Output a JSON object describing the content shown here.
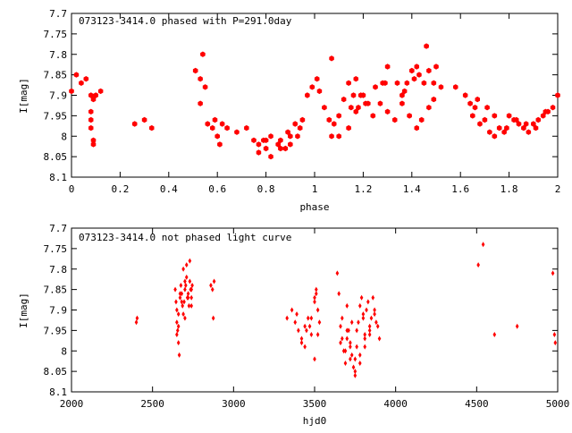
{
  "colors": {
    "points": "#ff0000",
    "axis": "#000000",
    "background": "#ffffff"
  },
  "chart_data": [
    {
      "type": "scatter",
      "title": "073123-3414.0 phased with P=291.0day",
      "xlabel": "phase",
      "ylabel": "I[mag]",
      "xlim": [
        0,
        2
      ],
      "ylim": [
        8.1,
        7.7
      ],
      "y_inverted": true,
      "grid": false,
      "legend": "none",
      "xticks": [
        "0",
        "0.2",
        "0.4",
        "0.6",
        "0.8",
        "1",
        "1.2",
        "1.4",
        "1.6",
        "1.8",
        "2"
      ],
      "yticks": [
        "7.7",
        "7.75",
        "7.8",
        "7.85",
        "7.9",
        "7.95",
        "8",
        "8.05",
        "8.1"
      ],
      "x": [
        0.0,
        0.02,
        0.04,
        0.06,
        0.08,
        0.08,
        0.08,
        0.08,
        0.09,
        0.09,
        0.09,
        0.1,
        0.12,
        0.26,
        0.3,
        0.33,
        0.51,
        0.53,
        0.54,
        0.55,
        0.53,
        0.56,
        0.58,
        0.6,
        0.59,
        0.61,
        0.62,
        0.64,
        0.68,
        0.72,
        0.75,
        0.77,
        0.8,
        0.82,
        0.85,
        0.88,
        0.9,
        0.93,
        0.77,
        0.79,
        0.82,
        0.86,
        0.89,
        0.92,
        0.95,
        0.8,
        0.86,
        0.9,
        0.94,
        0.97,
        0.99,
        1.01,
        1.02,
        1.04,
        1.06,
        1.08,
        1.1,
        1.12,
        1.14,
        1.16,
        1.18,
        1.2,
        1.22,
        1.25,
        1.28,
        1.3,
        1.07,
        1.1,
        1.14,
        1.17,
        1.19,
        1.21,
        1.24,
        1.27,
        1.3,
        1.33,
        1.36,
        1.38,
        1.4,
        1.43,
        1.45,
        1.47,
        1.49,
        1.5,
        1.52,
        1.36,
        1.39,
        1.42,
        1.44,
        1.47,
        1.49,
        1.34,
        1.37,
        1.41,
        1.46,
        1.58,
        1.62,
        1.64,
        1.65,
        1.66,
        1.68,
        1.7,
        1.72,
        1.74,
        1.76,
        1.78,
        1.8,
        1.82,
        1.84,
        1.86,
        1.88,
        1.9,
        1.92,
        1.94,
        1.96,
        1.98,
        2.0,
        1.67,
        1.71,
        1.74,
        1.79,
        1.83,
        1.87,
        1.91,
        1.95,
        1.07,
        1.15,
        1.17,
        1.29,
        1.42
      ],
      "y": [
        7.89,
        7.85,
        7.87,
        7.86,
        7.9,
        7.94,
        7.96,
        7.98,
        8.01,
        8.02,
        7.91,
        7.9,
        7.89,
        7.97,
        7.96,
        7.98,
        7.84,
        7.86,
        7.8,
        7.88,
        7.92,
        7.97,
        7.98,
        8.0,
        7.96,
        8.02,
        7.97,
        7.98,
        7.99,
        7.98,
        8.01,
        8.02,
        8.01,
        8.0,
        8.02,
        8.03,
        8.0,
        8.0,
        8.04,
        8.01,
        8.05,
        8.03,
        7.99,
        7.97,
        7.96,
        8.03,
        8.01,
        8.02,
        7.98,
        7.9,
        7.88,
        7.86,
        7.89,
        7.93,
        7.96,
        7.97,
        7.95,
        7.91,
        7.87,
        7.9,
        7.93,
        7.9,
        7.92,
        7.88,
        7.87,
        7.83,
        8.0,
        8.0,
        7.98,
        7.86,
        7.9,
        7.92,
        7.95,
        7.92,
        7.94,
        7.96,
        7.92,
        7.87,
        7.84,
        7.85,
        7.87,
        7.84,
        7.87,
        7.83,
        7.88,
        7.9,
        7.95,
        7.98,
        7.96,
        7.93,
        7.91,
        7.87,
        7.89,
        7.86,
        7.78,
        7.88,
        7.9,
        7.92,
        7.95,
        7.93,
        7.97,
        7.96,
        7.99,
        8.0,
        7.98,
        7.99,
        7.95,
        7.96,
        7.97,
        7.98,
        7.99,
        7.97,
        7.96,
        7.95,
        7.94,
        7.93,
        7.9,
        7.91,
        7.93,
        7.95,
        7.98,
        7.96,
        7.97,
        7.98,
        7.94,
        7.81,
        7.93,
        7.94,
        7.87,
        7.83
      ]
    },
    {
      "type": "scatter",
      "title": "073123-3414.0 not phased light curve",
      "xlabel": "hjd0",
      "ylabel": "I[mag]",
      "xlim": [
        2000,
        5000
      ],
      "ylim": [
        8.1,
        7.7
      ],
      "y_inverted": true,
      "grid": false,
      "legend": "none",
      "xticks": [
        "2000",
        "2500",
        "3000",
        "3500",
        "4000",
        "4500",
        "5000"
      ],
      "yticks": [
        "7.7",
        "7.75",
        "7.8",
        "7.85",
        "7.9",
        "7.95",
        "8",
        "8.05",
        "8.1"
      ],
      "x": [
        2400,
        2405,
        2640,
        2645,
        2650,
        2655,
        2660,
        2665,
        2670,
        2675,
        2680,
        2685,
        2690,
        2695,
        2700,
        2705,
        2710,
        2715,
        2720,
        2725,
        2730,
        2735,
        2740,
        2745,
        2650,
        2660,
        2670,
        2690,
        2710,
        2730,
        2660,
        2680,
        2700,
        2720,
        2740,
        2650,
        2700,
        2740,
        2860,
        2870,
        2880,
        2875,
        3330,
        3360,
        3380,
        3400,
        3420,
        3440,
        3460,
        3480,
        3500,
        3510,
        3520,
        3530,
        3390,
        3420,
        3450,
        3480,
        3500,
        3510,
        3440,
        3470,
        3500,
        3520,
        3640,
        3650,
        3660,
        3670,
        3680,
        3690,
        3700,
        3710,
        3720,
        3730,
        3740,
        3750,
        3760,
        3770,
        3780,
        3790,
        3800,
        3810,
        3820,
        3830,
        3840,
        3850,
        3860,
        3870,
        3880,
        3890,
        3900,
        3670,
        3700,
        3720,
        3750,
        3780,
        3810,
        3840,
        3870,
        3660,
        3690,
        3720,
        3750,
        3780,
        3810,
        3840,
        3700,
        3730,
        3760,
        3800,
        4510,
        4540,
        4610,
        4750,
        4970,
        4980,
        4985
      ],
      "y": [
        7.93,
        7.92,
        7.85,
        7.88,
        7.9,
        7.95,
        7.98,
        8.01,
        7.87,
        7.84,
        7.86,
        7.89,
        7.91,
        7.88,
        7.85,
        7.84,
        7.82,
        7.87,
        7.86,
        7.89,
        7.83,
        7.85,
        7.87,
        7.84,
        7.93,
        7.91,
        7.86,
        7.8,
        7.79,
        7.78,
        7.94,
        7.88,
        7.83,
        7.87,
        7.85,
        7.96,
        7.92,
        7.89,
        7.84,
        7.85,
        7.83,
        7.92,
        7.92,
        7.9,
        7.93,
        7.95,
        7.97,
        7.94,
        7.92,
        7.96,
        7.87,
        7.85,
        7.9,
        7.93,
        7.91,
        7.98,
        7.95,
        7.92,
        7.88,
        7.86,
        7.99,
        7.94,
        8.02,
        7.96,
        7.81,
        7.86,
        7.94,
        7.97,
        8.0,
        8.03,
        7.97,
        7.95,
        7.99,
        8.01,
        8.04,
        8.02,
        7.99,
        7.93,
        7.89,
        7.87,
        7.92,
        7.96,
        7.9,
        7.88,
        7.95,
        7.92,
        7.87,
        7.9,
        7.93,
        7.94,
        7.97,
        7.92,
        7.95,
        7.98,
        8.06,
        8.03,
        7.99,
        7.96,
        7.91,
        7.98,
        8.0,
        8.02,
        8.05,
        8.01,
        7.97,
        7.94,
        7.89,
        7.93,
        7.95,
        7.91,
        7.79,
        7.74,
        7.96,
        7.94,
        7.81,
        7.96,
        7.98
      ]
    }
  ]
}
